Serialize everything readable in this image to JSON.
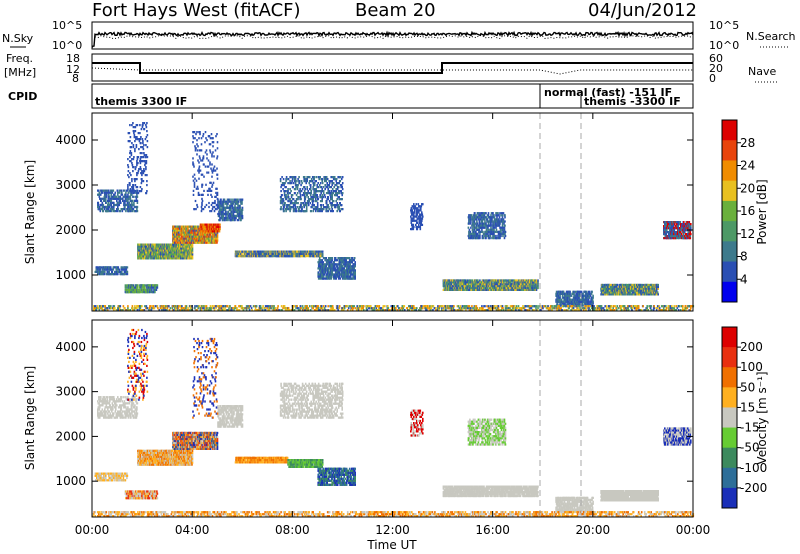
{
  "header": {
    "title": "Fort Hays West (fitACF)",
    "beam": "Beam 20",
    "date": "04/Jun/2012"
  },
  "panels": {
    "nsky": {
      "left_label": "N.Sky",
      "right_label": "N.Search",
      "left_ticks": [
        "10^5",
        "10^0"
      ],
      "right_ticks": [
        "10^5",
        "10^0"
      ]
    },
    "freq": {
      "left_label_1": "Freq.",
      "left_label_2": "[MHz]",
      "right_label": "Nave",
      "left_ticks": [
        "18",
        "12",
        "8"
      ],
      "right_ticks": [
        "60",
        "20",
        "0"
      ]
    },
    "cpid": {
      "label": "CPID",
      "segments": [
        "themis 3300 IF",
        "normal (fast) -151 IF",
        "themis -3300 IF"
      ]
    }
  },
  "chart_data": [
    {
      "type": "heatmap",
      "name_key": "power",
      "ylabel": "Slant Range [km]",
      "y_ticks": [
        "4000",
        "3000",
        "2000",
        "1000"
      ],
      "y_tick_values": [
        4000,
        3000,
        2000,
        1000
      ],
      "ylim": [
        200,
        4600
      ],
      "xlim_hours": [
        0,
        24
      ],
      "colorbar_label": "Power [dB]",
      "colorbar_ticks": [
        "28",
        "24",
        "20",
        "16",
        "12",
        "8",
        "4"
      ],
      "colorbar_values": [
        28,
        24,
        20,
        16,
        12,
        8,
        4
      ],
      "colorbar_range": [
        0,
        32
      ],
      "colors": [
        "#0000ee",
        "#2a4fb3",
        "#3d7a8c",
        "#4d9966",
        "#6ab03c",
        "#e8c020",
        "#f08c00",
        "#e8440c",
        "#dd0000"
      ]
    },
    {
      "type": "heatmap",
      "name_key": "velocity",
      "ylabel": "Slant Range [km]",
      "y_ticks": [
        "4000",
        "3000",
        "2000",
        "1000"
      ],
      "y_tick_values": [
        4000,
        3000,
        2000,
        1000
      ],
      "ylim": [
        200,
        4600
      ],
      "xlim_hours": [
        0,
        24
      ],
      "xlabel": "Time UT",
      "x_ticks": [
        "00:00",
        "04:00",
        "08:00",
        "12:00",
        "16:00",
        "20:00",
        "00:00"
      ],
      "x_tick_values": [
        0,
        4,
        8,
        12,
        16,
        20,
        24
      ],
      "colorbar_label": "Velocity [m s⁻¹]",
      "colorbar_ticks": [
        "200",
        "100",
        "50",
        "15",
        "-15",
        "-50",
        "-100",
        "-200"
      ],
      "colorbar_values": [
        200,
        100,
        50,
        15,
        -15,
        -50,
        -100,
        -200
      ],
      "colors": [
        "#1a2fb8",
        "#2d6e99",
        "#3c8a5e",
        "#66cc33",
        "#c8c8c0",
        "#ffb020",
        "#f07000",
        "#e83010",
        "#dd0000"
      ]
    }
  ],
  "regions": {
    "power": [
      {
        "t0": 0.1,
        "t1": 1.4,
        "r0": 1000,
        "r1": 1200,
        "c": [
          1,
          2
        ],
        "d": 0.6
      },
      {
        "t0": 1.3,
        "t1": 2.6,
        "r0": 600,
        "r1": 800,
        "c": [
          1,
          3,
          4
        ],
        "d": 0.7
      },
      {
        "t0": 1.8,
        "t1": 4.0,
        "r0": 1350,
        "r1": 1700,
        "c": [
          1,
          3,
          4,
          5
        ],
        "d": 0.85
      },
      {
        "t0": 3.2,
        "t1": 5.0,
        "r0": 1700,
        "r1": 2100,
        "c": [
          1,
          4,
          5,
          6,
          7
        ],
        "d": 0.85
      },
      {
        "t0": 4.3,
        "t1": 5.1,
        "r0": 1950,
        "r1": 2150,
        "c": [
          6,
          7,
          8
        ],
        "d": 0.7
      },
      {
        "t0": 5.0,
        "t1": 6.0,
        "r0": 2200,
        "r1": 2700,
        "c": [
          1,
          2
        ],
        "d": 0.5
      },
      {
        "t0": 0.2,
        "t1": 1.8,
        "r0": 2400,
        "r1": 2900,
        "c": [
          1,
          2
        ],
        "d": 0.35
      },
      {
        "t0": 5.7,
        "t1": 9.2,
        "r0": 1400,
        "r1": 1550,
        "c": [
          1,
          2,
          5
        ],
        "d": 0.8
      },
      {
        "t0": 9.0,
        "t1": 10.5,
        "r0": 900,
        "r1": 1400,
        "c": [
          1,
          2
        ],
        "d": 0.55
      },
      {
        "t0": 7.5,
        "t1": 10.0,
        "r0": 2400,
        "r1": 3200,
        "c": [
          1,
          2
        ],
        "d": 0.25
      },
      {
        "t0": 14.0,
        "t1": 17.8,
        "r0": 650,
        "r1": 900,
        "c": [
          1,
          2,
          3,
          5
        ],
        "d": 0.75
      },
      {
        "t0": 15.0,
        "t1": 16.5,
        "r0": 1800,
        "r1": 2400,
        "c": [
          1,
          2
        ],
        "d": 0.45
      },
      {
        "t0": 12.7,
        "t1": 13.2,
        "r0": 2000,
        "r1": 2600,
        "c": [
          1
        ],
        "d": 0.35
      },
      {
        "t0": 20.3,
        "t1": 22.6,
        "r0": 550,
        "r1": 800,
        "c": [
          1,
          2,
          3,
          5
        ],
        "d": 0.8
      },
      {
        "t0": 18.5,
        "t1": 20.0,
        "r0": 300,
        "r1": 650,
        "c": [
          1,
          2
        ],
        "d": 0.55
      },
      {
        "t0": 22.8,
        "t1": 23.9,
        "r0": 1800,
        "r1": 2200,
        "c": [
          1,
          2,
          8
        ],
        "d": 0.6
      },
      {
        "t0": 0.0,
        "t1": 24.0,
        "r0": 200,
        "r1": 330,
        "c": [
          1,
          3,
          5,
          6
        ],
        "d": 0.35
      },
      {
        "t0": 1.4,
        "t1": 2.2,
        "r0": 2800,
        "r1": 4400,
        "c": [
          1
        ],
        "d": 0.12
      },
      {
        "t0": 4.0,
        "t1": 5.0,
        "r0": 2400,
        "r1": 4200,
        "c": [
          1
        ],
        "d": 0.1
      }
    ],
    "velocity": [
      {
        "t0": 0.1,
        "t1": 1.4,
        "r0": 1000,
        "r1": 1200,
        "c": [
          4,
          5
        ],
        "d": 0.55
      },
      {
        "t0": 1.3,
        "t1": 2.6,
        "r0": 600,
        "r1": 800,
        "c": [
          4,
          5,
          7
        ],
        "d": 0.65
      },
      {
        "t0": 1.8,
        "t1": 4.0,
        "r0": 1350,
        "r1": 1700,
        "c": [
          4,
          5,
          6
        ],
        "d": 0.85
      },
      {
        "t0": 3.2,
        "t1": 5.0,
        "r0": 1700,
        "r1": 2100,
        "c": [
          0,
          1,
          4,
          5,
          6,
          7
        ],
        "d": 0.85
      },
      {
        "t0": 5.0,
        "t1": 6.0,
        "r0": 2200,
        "r1": 2700,
        "c": [
          4
        ],
        "d": 0.5
      },
      {
        "t0": 0.2,
        "t1": 1.8,
        "r0": 2400,
        "r1": 2900,
        "c": [
          4
        ],
        "d": 0.35
      },
      {
        "t0": 5.7,
        "t1": 7.8,
        "r0": 1400,
        "r1": 1550,
        "c": [
          5,
          6
        ],
        "d": 0.8
      },
      {
        "t0": 7.8,
        "t1": 9.2,
        "r0": 1300,
        "r1": 1500,
        "c": [
          3,
          2
        ],
        "d": 0.8
      },
      {
        "t0": 9.0,
        "t1": 10.5,
        "r0": 900,
        "r1": 1300,
        "c": [
          1,
          2,
          0
        ],
        "d": 0.55
      },
      {
        "t0": 7.5,
        "t1": 10.0,
        "r0": 2400,
        "r1": 3200,
        "c": [
          4
        ],
        "d": 0.3
      },
      {
        "t0": 14.0,
        "t1": 17.8,
        "r0": 650,
        "r1": 900,
        "c": [
          4
        ],
        "d": 0.7
      },
      {
        "t0": 15.0,
        "t1": 16.5,
        "r0": 1800,
        "r1": 2400,
        "c": [
          4,
          3
        ],
        "d": 0.45
      },
      {
        "t0": 12.7,
        "t1": 13.2,
        "r0": 2000,
        "r1": 2600,
        "c": [
          8,
          4
        ],
        "d": 0.35
      },
      {
        "t0": 20.3,
        "t1": 22.6,
        "r0": 550,
        "r1": 800,
        "c": [
          4
        ],
        "d": 0.8
      },
      {
        "t0": 18.5,
        "t1": 20.0,
        "r0": 300,
        "r1": 650,
        "c": [
          4
        ],
        "d": 0.55
      },
      {
        "t0": 22.8,
        "t1": 23.9,
        "r0": 1800,
        "r1": 2200,
        "c": [
          4,
          0
        ],
        "d": 0.6
      },
      {
        "t0": 0.0,
        "t1": 24.0,
        "r0": 200,
        "r1": 330,
        "c": [
          5,
          6,
          4
        ],
        "d": 0.35
      },
      {
        "t0": 1.4,
        "t1": 2.2,
        "r0": 2800,
        "r1": 4400,
        "c": [
          8,
          0,
          5
        ],
        "d": 0.12
      },
      {
        "t0": 4.0,
        "t1": 5.0,
        "r0": 2400,
        "r1": 4200,
        "c": [
          6,
          0
        ],
        "d": 0.1
      }
    ]
  }
}
